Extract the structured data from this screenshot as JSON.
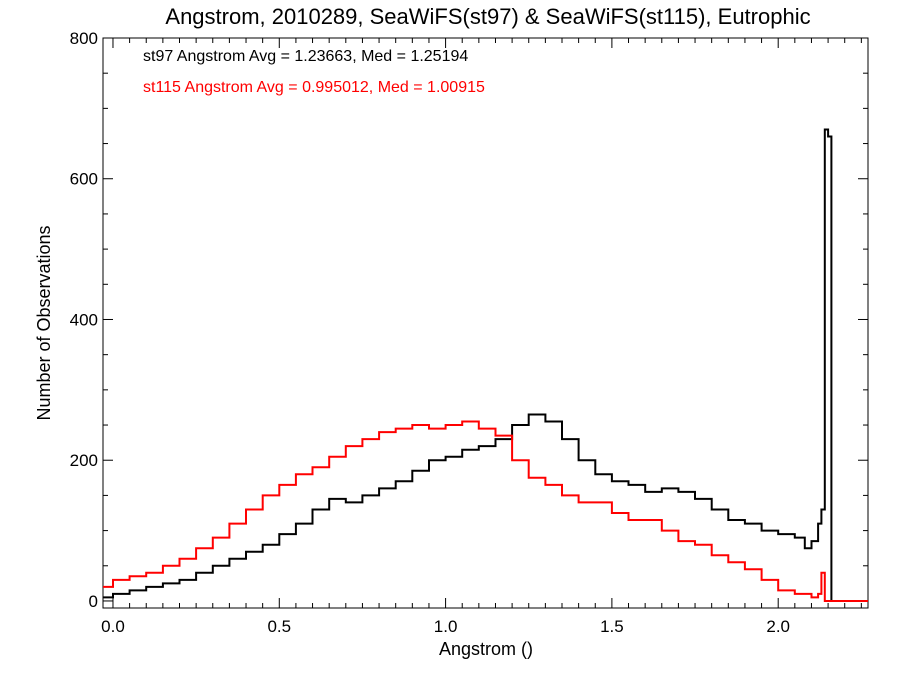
{
  "chart_data": {
    "type": "line",
    "title": "Angstrom, 2010289, SeaWiFS(st97) & SeaWiFS(st115), Eutrophic",
    "xlabel": "Angstrom ()",
    "ylabel": "Number of Observations",
    "xlim": [
      -0.03,
      2.27
    ],
    "ylim": [
      -10,
      800
    ],
    "xticks": [
      0.0,
      0.5,
      1.0,
      1.5,
      2.0
    ],
    "xtick_labels": [
      "0.0",
      "0.5",
      "1.0",
      "1.5",
      "2.0"
    ],
    "yticks": [
      0,
      200,
      400,
      600,
      800
    ],
    "ytick_labels": [
      "0",
      "200",
      "400",
      "600",
      "800"
    ],
    "grid": false,
    "annotations": [
      {
        "text": "st97 Angstrom Avg = 1.23663, Med = 1.25194",
        "color": "#000000"
      },
      {
        "text": "st115 Angstrom Avg = 0.995012, Med = 1.00915",
        "color": "#ff0000"
      }
    ],
    "series": [
      {
        "color": "#000000",
        "style": "step",
        "x": [
          -0.03,
          0.0,
          0.05,
          0.1,
          0.15,
          0.2,
          0.25,
          0.3,
          0.35,
          0.4,
          0.45,
          0.5,
          0.55,
          0.6,
          0.65,
          0.7,
          0.75,
          0.8,
          0.85,
          0.9,
          0.95,
          1.0,
          1.05,
          1.1,
          1.15,
          1.2,
          1.25,
          1.3,
          1.35,
          1.4,
          1.45,
          1.5,
          1.55,
          1.6,
          1.65,
          1.7,
          1.75,
          1.8,
          1.85,
          1.9,
          1.95,
          2.0,
          2.05,
          2.08,
          2.1,
          2.12,
          2.13,
          2.14,
          2.15,
          2.16,
          2.27
        ],
        "y": [
          5,
          10,
          15,
          20,
          25,
          30,
          40,
          50,
          60,
          70,
          80,
          95,
          110,
          130,
          145,
          140,
          150,
          160,
          170,
          185,
          200,
          205,
          215,
          220,
          230,
          250,
          265,
          255,
          230,
          200,
          180,
          170,
          165,
          155,
          160,
          155,
          145,
          130,
          115,
          110,
          100,
          95,
          90,
          75,
          85,
          110,
          130,
          670,
          660,
          0,
          0
        ]
      },
      {
        "color": "#ff0000",
        "style": "step",
        "x": [
          -0.03,
          0.0,
          0.05,
          0.1,
          0.15,
          0.2,
          0.25,
          0.3,
          0.35,
          0.4,
          0.45,
          0.5,
          0.55,
          0.6,
          0.65,
          0.7,
          0.75,
          0.8,
          0.85,
          0.9,
          0.95,
          1.0,
          1.05,
          1.1,
          1.15,
          1.2,
          1.25,
          1.3,
          1.35,
          1.4,
          1.45,
          1.5,
          1.55,
          1.6,
          1.65,
          1.7,
          1.75,
          1.8,
          1.85,
          1.9,
          1.95,
          2.0,
          2.05,
          2.1,
          2.12,
          2.13,
          2.14,
          2.15,
          2.27
        ],
        "y": [
          20,
          30,
          35,
          40,
          50,
          60,
          75,
          90,
          110,
          130,
          150,
          165,
          180,
          190,
          205,
          220,
          230,
          240,
          245,
          250,
          245,
          250,
          255,
          245,
          235,
          200,
          175,
          165,
          150,
          140,
          140,
          125,
          115,
          115,
          100,
          85,
          80,
          65,
          55,
          45,
          30,
          15,
          10,
          5,
          10,
          40,
          0,
          0,
          0
        ]
      }
    ]
  }
}
